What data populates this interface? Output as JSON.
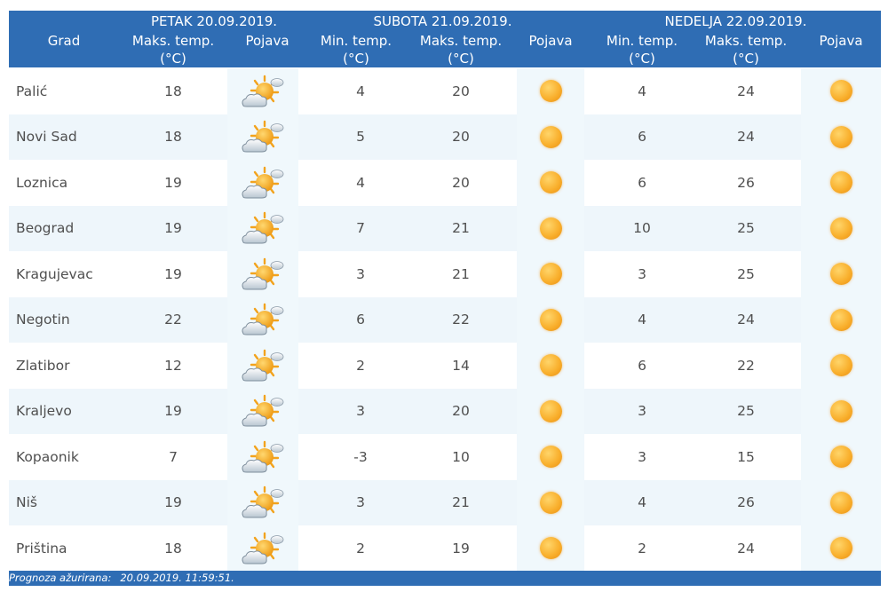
{
  "header": {
    "col_city": "Grad",
    "days": [
      {
        "label": "PETAK  20.09.2019."
      },
      {
        "label": "SUBOTA  21.09.2019."
      },
      {
        "label": "NEDELJA  22.09.2019."
      }
    ],
    "max_temp": "Maks. temp.",
    "min_temp": "Min. temp.",
    "unit": "(°C)",
    "pojava": "Pojava"
  },
  "icons": {
    "partly_cloudy": "partly-cloudy-sunny-icon",
    "sunny": "sunny-icon"
  },
  "colors": {
    "header_blue": "#2f6db4",
    "row_alt": "#eef6fb",
    "sun": "#f9b02e"
  },
  "rows": [
    {
      "city": "Palić",
      "fri_max": "18",
      "sat_min": "4",
      "sat_max": "20",
      "sun_min": "4",
      "sun_max": "24"
    },
    {
      "city": "Novi Sad",
      "fri_max": "18",
      "sat_min": "5",
      "sat_max": "20",
      "sun_min": "6",
      "sun_max": "24"
    },
    {
      "city": "Loznica",
      "fri_max": "19",
      "sat_min": "4",
      "sat_max": "20",
      "sun_min": "6",
      "sun_max": "26"
    },
    {
      "city": "Beograd",
      "fri_max": "19",
      "sat_min": "7",
      "sat_max": "21",
      "sun_min": "10",
      "sun_max": "25"
    },
    {
      "city": "Kragujevac",
      "fri_max": "19",
      "sat_min": "3",
      "sat_max": "21",
      "sun_min": "3",
      "sun_max": "25"
    },
    {
      "city": "Negotin",
      "fri_max": "22",
      "sat_min": "6",
      "sat_max": "22",
      "sun_min": "4",
      "sun_max": "24"
    },
    {
      "city": "Zlatibor",
      "fri_max": "12",
      "sat_min": "2",
      "sat_max": "14",
      "sun_min": "6",
      "sun_max": "22"
    },
    {
      "city": "Kraljevo",
      "fri_max": "19",
      "sat_min": "3",
      "sat_max": "20",
      "sun_min": "3",
      "sun_max": "25"
    },
    {
      "city": "Kopaonik",
      "fri_max": "7",
      "sat_min": "-3",
      "sat_max": "10",
      "sun_min": "3",
      "sun_max": "15"
    },
    {
      "city": "Niš",
      "fri_max": "19",
      "sat_min": "3",
      "sat_max": "21",
      "sun_min": "4",
      "sun_max": "26"
    },
    {
      "city": "Priština",
      "fri_max": "18",
      "sat_min": "2",
      "sat_max": "19",
      "sun_min": "2",
      "sun_max": "24"
    }
  ],
  "footer": {
    "label": "Prognoza ažurirana:",
    "value": "20.09.2019. 11:59:51."
  }
}
